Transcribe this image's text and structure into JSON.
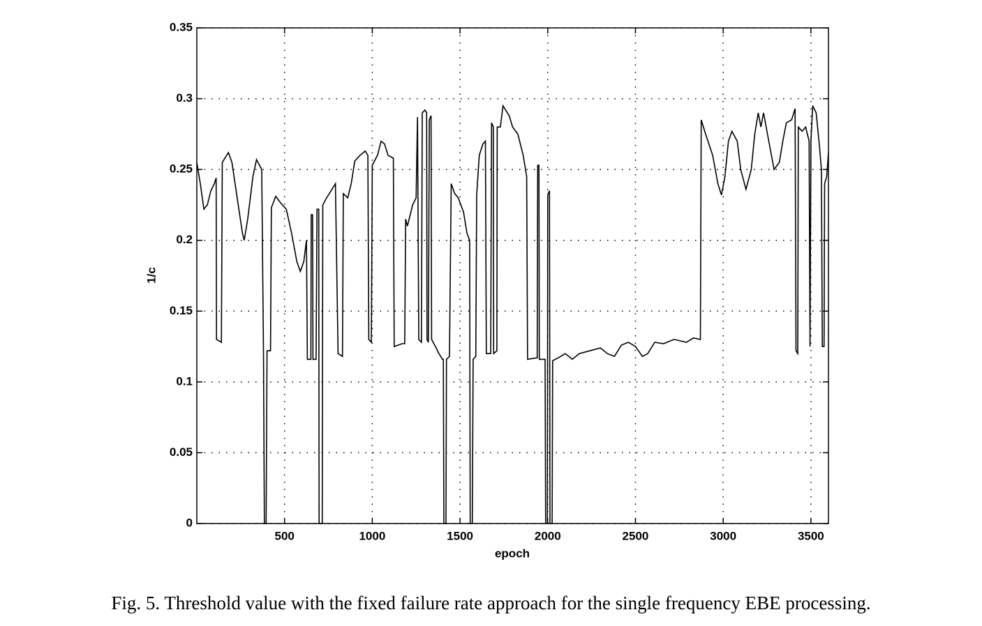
{
  "chart_data": {
    "type": "line",
    "xlabel": "epoch",
    "ylabel": "1/c",
    "caption": "Fig. 5. Threshold value with the fixed failure rate approach for the single frequency EBE processing.",
    "color": "#000000",
    "grid": true,
    "xlim": [
      0,
      3600
    ],
    "ylim": [
      0,
      0.35
    ],
    "xticks": [
      500,
      1000,
      1500,
      2000,
      2500,
      3000,
      3500
    ],
    "yticks": [
      0,
      0.05,
      0.1,
      0.15,
      0.2,
      0.25,
      0.3,
      0.35
    ],
    "x": [
      0,
      20,
      40,
      60,
      80,
      100,
      110,
      112,
      140,
      145,
      160,
      180,
      200,
      230,
      260,
      270,
      290,
      320,
      340,
      370,
      375,
      380,
      385,
      395,
      400,
      420,
      425,
      450,
      480,
      510,
      540,
      570,
      590,
      610,
      625,
      630,
      650,
      652,
      660,
      662,
      680,
      685,
      695,
      697,
      715,
      718,
      740,
      790,
      805,
      830,
      835,
      860,
      880,
      900,
      930,
      960,
      975,
      980,
      995,
      1000,
      1030,
      1050,
      1070,
      1090,
      1120,
      1125,
      1170,
      1185,
      1190,
      1200,
      1230,
      1250,
      1258,
      1265,
      1280,
      1285,
      1300,
      1310,
      1312,
      1320,
      1325,
      1335,
      1338,
      1360,
      1380,
      1400,
      1405,
      1408,
      1420,
      1423,
      1440,
      1450,
      1470,
      1490,
      1520,
      1540,
      1555,
      1558,
      1570,
      1575,
      1590,
      1595,
      1610,
      1630,
      1645,
      1650,
      1675,
      1680,
      1690,
      1692,
      1710,
      1712,
      1730,
      1745,
      1780,
      1800,
      1830,
      1860,
      1880,
      1885,
      1940,
      1943,
      1950,
      1952,
      1985,
      1988,
      1998,
      2000,
      2010,
      2013,
      2025,
      2028,
      2060,
      2100,
      2140,
      2180,
      2240,
      2300,
      2340,
      2380,
      2420,
      2460,
      2500,
      2540,
      2570,
      2610,
      2660,
      2720,
      2790,
      2830,
      2870,
      2875,
      2900,
      2940,
      2970,
      2990,
      3010,
      3030,
      3050,
      3080,
      3100,
      3130,
      3160,
      3180,
      3200,
      3215,
      3230,
      3260,
      3290,
      3320,
      3340,
      3360,
      3390,
      3410,
      3415,
      3425,
      3428,
      3450,
      3470,
      3490,
      3495,
      3500,
      3510,
      3530,
      3550,
      3560,
      3565,
      3575,
      3578,
      3590,
      3600
    ],
    "values": [
      0.255,
      0.24,
      0.222,
      0.225,
      0.235,
      0.24,
      0.244,
      0.13,
      0.128,
      0.255,
      0.258,
      0.262,
      0.255,
      0.23,
      0.205,
      0.2,
      0.215,
      0.245,
      0.257,
      0.25,
      0.183,
      0.122,
      0,
      0,
      0.122,
      0.122,
      0.223,
      0.231,
      0.226,
      0.222,
      0.205,
      0.185,
      0.178,
      0.185,
      0.2,
      0.116,
      0.116,
      0.218,
      0.218,
      0.116,
      0.116,
      0.222,
      0.222,
      0,
      0,
      0.225,
      0.23,
      0.24,
      0.12,
      0.118,
      0.233,
      0.23,
      0.24,
      0.256,
      0.26,
      0.263,
      0.26,
      0.13,
      0.128,
      0.253,
      0.26,
      0.27,
      0.268,
      0.26,
      0.258,
      0.125,
      0.127,
      0.127,
      0.215,
      0.21,
      0.225,
      0.23,
      0.287,
      0.13,
      0.128,
      0.29,
      0.292,
      0.29,
      0.13,
      0.128,
      0.285,
      0.288,
      0.13,
      0.125,
      0.12,
      0.116,
      0.116,
      0,
      0,
      0.116,
      0.118,
      0.24,
      0.233,
      0.23,
      0.22,
      0.205,
      0.2,
      0,
      0,
      0.116,
      0.118,
      0.232,
      0.26,
      0.268,
      0.27,
      0.12,
      0.12,
      0.283,
      0.28,
      0.12,
      0.122,
      0.28,
      0.28,
      0.295,
      0.288,
      0.28,
      0.275,
      0.26,
      0.245,
      0.116,
      0.117,
      0.253,
      0.253,
      0.116,
      0.116,
      0,
      0,
      0.232,
      0.235,
      0,
      0,
      0.115,
      0.117,
      0.12,
      0.116,
      0.12,
      0.122,
      0.124,
      0.12,
      0.118,
      0.126,
      0.128,
      0.125,
      0.118,
      0.12,
      0.128,
      0.127,
      0.13,
      0.128,
      0.131,
      0.13,
      0.285,
      0.275,
      0.26,
      0.24,
      0.232,
      0.245,
      0.27,
      0.277,
      0.27,
      0.25,
      0.236,
      0.25,
      0.275,
      0.29,
      0.28,
      0.29,
      0.27,
      0.25,
      0.255,
      0.27,
      0.283,
      0.285,
      0.293,
      0.122,
      0.12,
      0.28,
      0.277,
      0.28,
      0.27,
      0.125,
      0.27,
      0.295,
      0.29,
      0.265,
      0.25,
      0.125,
      0.125,
      0.24,
      0.245,
      0.262
    ]
  }
}
